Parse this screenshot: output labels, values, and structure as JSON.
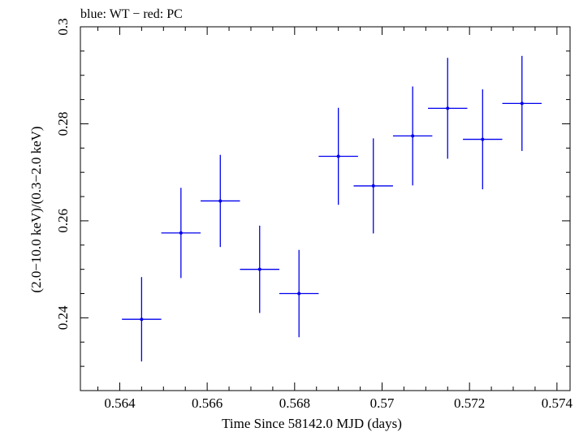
{
  "chart_data": {
    "type": "scatter",
    "title": "blue: WT − red: PC",
    "xlabel": "Time Since 58142.0 MJD (days)",
    "ylabel": "(2.0−10.0 keV)/(0.3−2.0 keV)",
    "xlim": [
      0.5631,
      0.5743
    ],
    "ylim": [
      0.225,
      0.3
    ],
    "x_ticks": [
      0.564,
      0.566,
      0.568,
      0.57,
      0.572,
      0.574
    ],
    "x_tick_labels": [
      "0.564",
      "0.566",
      "0.568",
      "0.57",
      "0.572",
      "0.574"
    ],
    "y_ticks": [
      0.24,
      0.26,
      0.28,
      0.3
    ],
    "y_tick_labels": [
      "0.24",
      "0.26",
      "0.28",
      "0.3"
    ],
    "grid": false,
    "series": [
      {
        "color": "#0000ee",
        "points": [
          {
            "x": 0.5645,
            "xerr": 0.00045,
            "y": 0.2397,
            "yerr": 0.0087
          },
          {
            "x": 0.5654,
            "xerr": 0.00045,
            "y": 0.2575,
            "yerr": 0.0093
          },
          {
            "x": 0.5663,
            "xerr": 0.00045,
            "y": 0.2641,
            "yerr": 0.0095
          },
          {
            "x": 0.5672,
            "xerr": 0.00045,
            "y": 0.25,
            "yerr": 0.009
          },
          {
            "x": 0.5681,
            "xerr": 0.00045,
            "y": 0.245,
            "yerr": 0.009
          },
          {
            "x": 0.569,
            "xerr": 0.00045,
            "y": 0.2733,
            "yerr": 0.01
          },
          {
            "x": 0.5698,
            "xerr": 0.00045,
            "y": 0.2672,
            "yerr": 0.0098
          },
          {
            "x": 0.5707,
            "xerr": 0.00045,
            "y": 0.2775,
            "yerr": 0.0102
          },
          {
            "x": 0.5715,
            "xerr": 0.00045,
            "y": 0.2832,
            "yerr": 0.0104
          },
          {
            "x": 0.5723,
            "xerr": 0.00045,
            "y": 0.2768,
            "yerr": 0.0103
          },
          {
            "x": 0.5732,
            "xerr": 0.00045,
            "y": 0.2842,
            "yerr": 0.0098
          }
        ]
      }
    ]
  }
}
